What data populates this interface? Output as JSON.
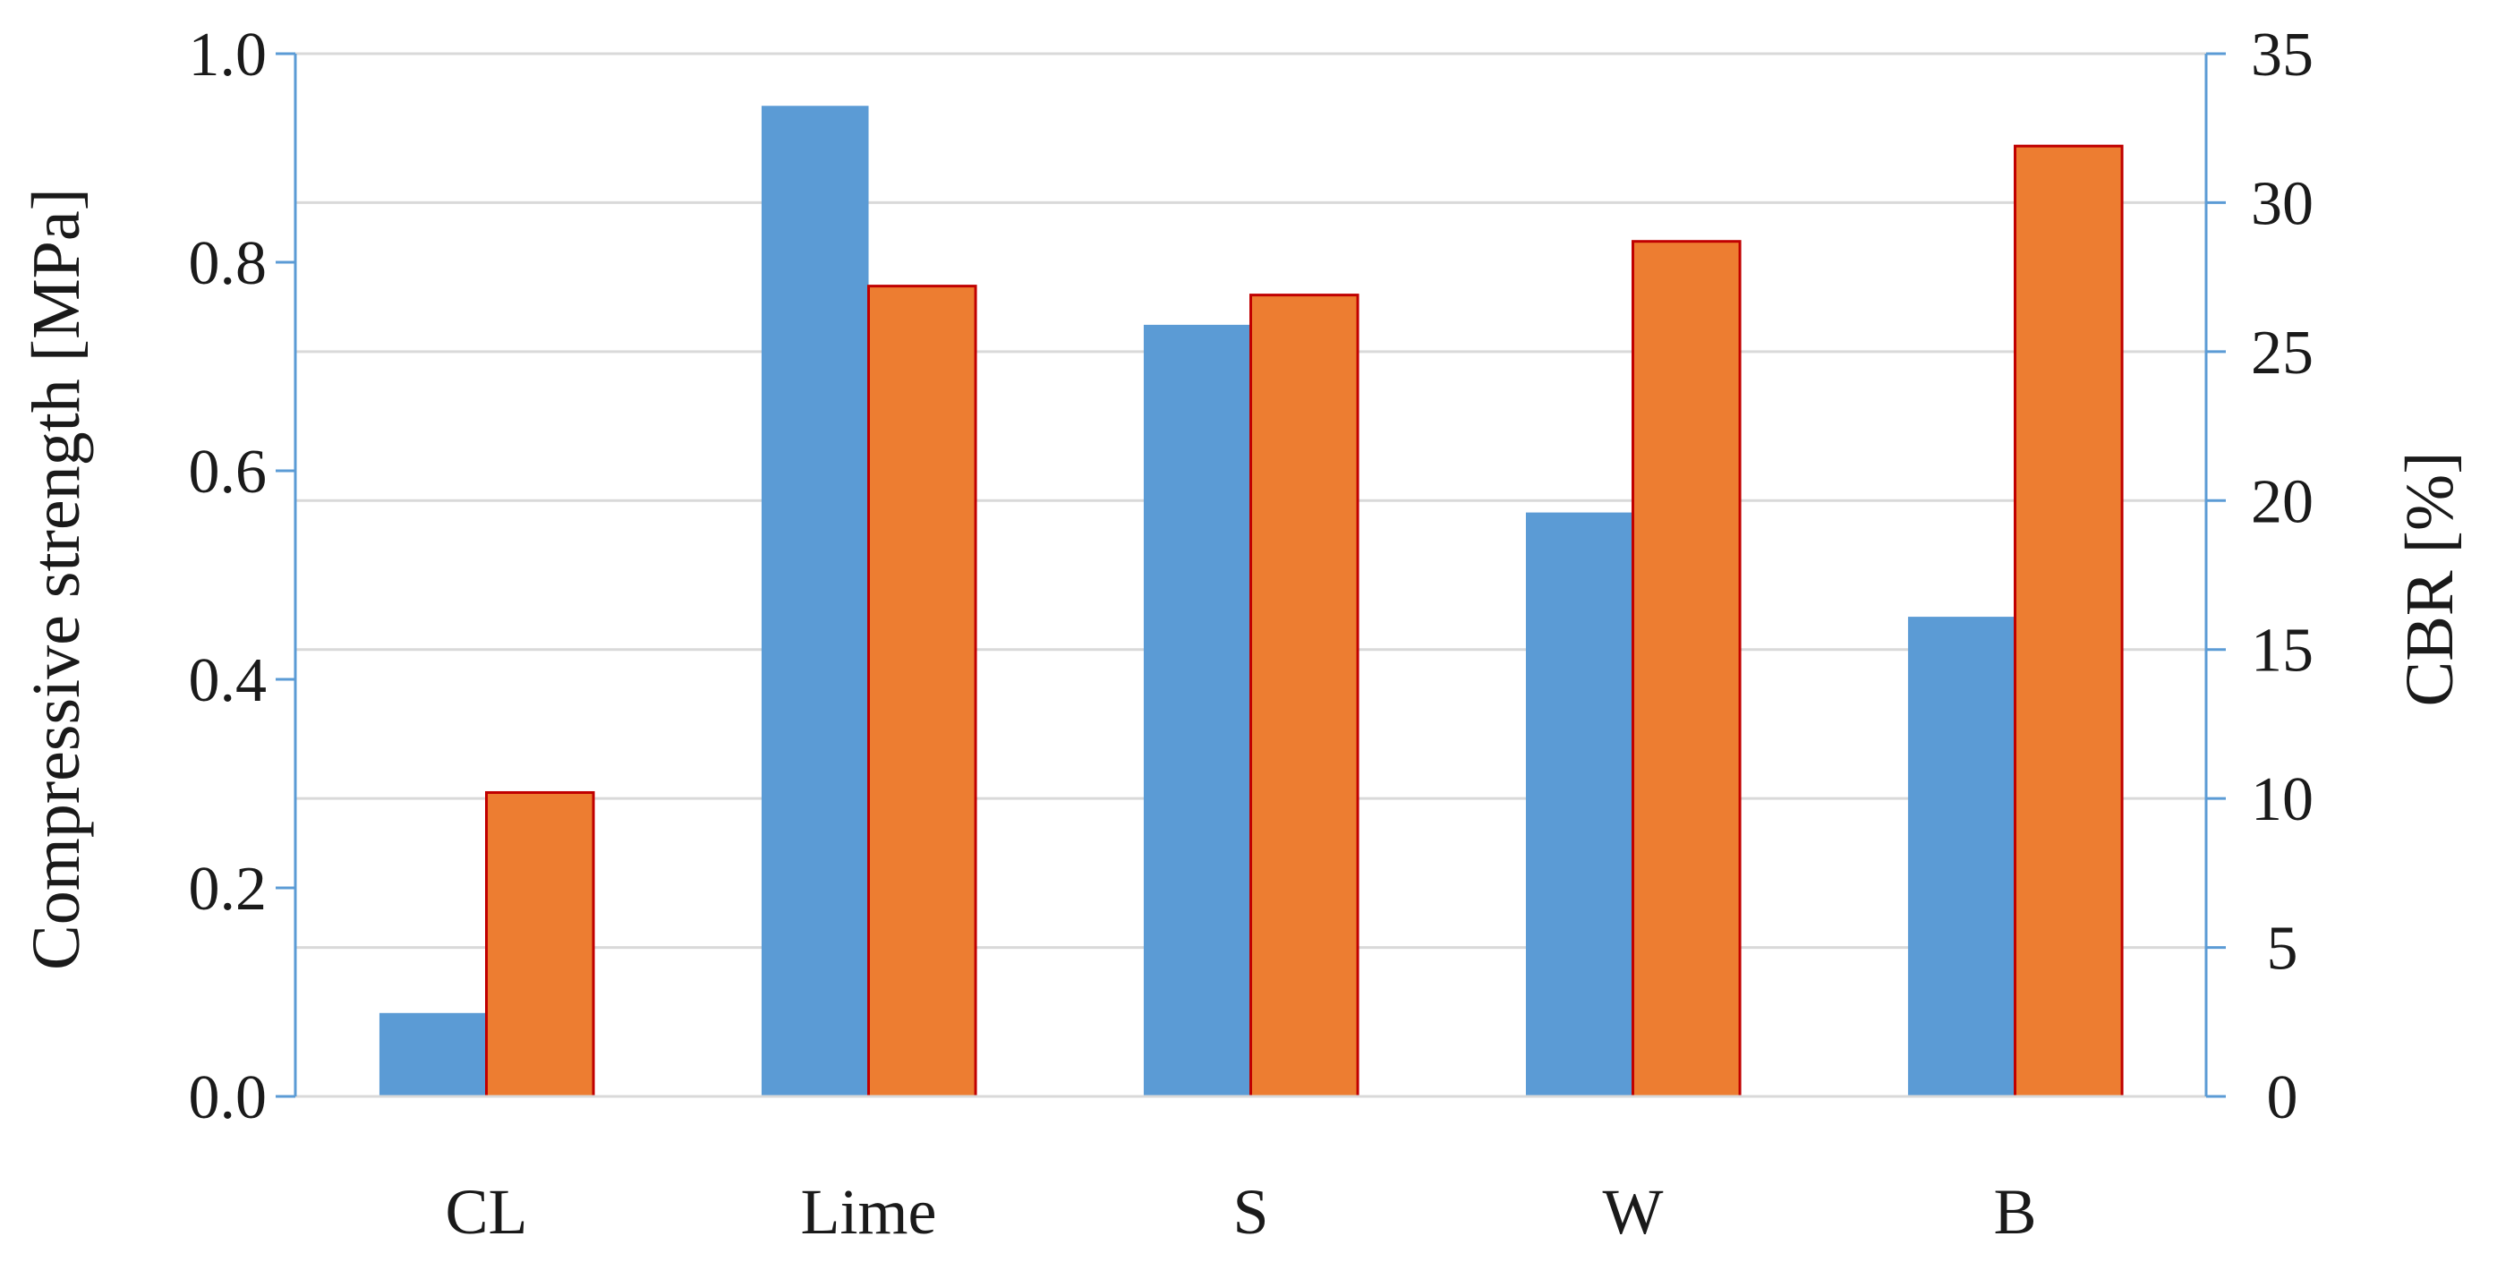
{
  "chart_data": {
    "type": "bar",
    "categories": [
      "CL",
      "Lime",
      "S",
      "W",
      "B"
    ],
    "series": [
      {
        "axis": "left",
        "color": "#5b9bd5",
        "values": [
          0.08,
          0.95,
          0.74,
          0.56,
          0.46
        ]
      },
      {
        "axis": "right",
        "color": "#ed7d31",
        "edge_color": "#c00000",
        "values": [
          10.2,
          27.2,
          26.9,
          28.7,
          31.9
        ]
      }
    ],
    "y_left": {
      "label": "Compressive strength [MPa]",
      "range": [
        0,
        1.0
      ],
      "ticks": [
        "0.0",
        "0.2",
        "0.4",
        "0.6",
        "0.8",
        "1.0"
      ]
    },
    "y_right": {
      "label": "CBR [%]",
      "range": [
        0,
        35
      ],
      "ticks": [
        "0",
        "5",
        "10",
        "15",
        "20",
        "25",
        "30",
        "35"
      ]
    },
    "grid": true,
    "axis_color": "#5b9bd5",
    "grid_color": "#d9d9d9"
  }
}
